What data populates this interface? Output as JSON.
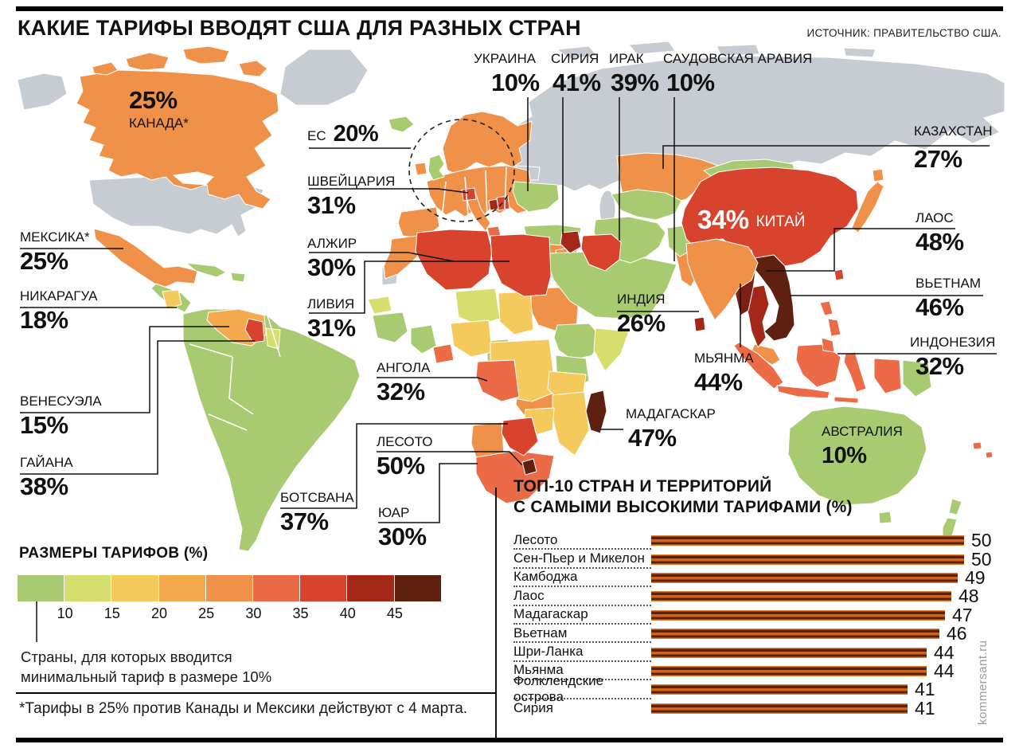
{
  "title": "КАКИЕ ТАРИФЫ ВВОДЯТ США ДЛЯ РАЗНЫХ СТРАН",
  "source": "ИСТОЧНИК: ПРАВИТЕЛЬСТВО США.",
  "watermark": "kommersant.ru",
  "map": {
    "callouts": [
      {
        "id": "canada",
        "name": "КАНАДА*",
        "value": "25%"
      },
      {
        "id": "mexico",
        "name": "МЕКСИКА*",
        "value": "25%"
      },
      {
        "id": "nicaragua",
        "name": "НИКАРАГУА",
        "value": "18%"
      },
      {
        "id": "venezuela",
        "name": "ВЕНЕСУЭЛА",
        "value": "15%"
      },
      {
        "id": "guyana",
        "name": "ГАЙАНА",
        "value": "38%"
      },
      {
        "id": "eu",
        "name": "ЕС",
        "value": "20%"
      },
      {
        "id": "switzerland",
        "name": "ШВЕЙЦАРИЯ",
        "value": "31%"
      },
      {
        "id": "algeria",
        "name": "АЛЖИР",
        "value": "30%"
      },
      {
        "id": "libya",
        "name": "ЛИВИЯ",
        "value": "31%"
      },
      {
        "id": "angola",
        "name": "АНГОЛА",
        "value": "32%"
      },
      {
        "id": "lesotho",
        "name": "ЛЕСОТО",
        "value": "50%"
      },
      {
        "id": "botswana",
        "name": "БОТСВАНА",
        "value": "37%"
      },
      {
        "id": "south-africa",
        "name": "ЮАР",
        "value": "30%"
      },
      {
        "id": "ukraine",
        "name": "УКРАИНА",
        "value": "10%"
      },
      {
        "id": "syria",
        "name": "СИРИЯ",
        "value": "41%"
      },
      {
        "id": "iraq",
        "name": "ИРАК",
        "value": "39%"
      },
      {
        "id": "saudi-arabia",
        "name": "САУДОВСКАЯ АРАВИЯ",
        "value": "10%"
      },
      {
        "id": "kazakhstan",
        "name": "КАЗАХСТАН",
        "value": "27%"
      },
      {
        "id": "china",
        "name": "КИТАЙ",
        "value": "34%"
      },
      {
        "id": "laos",
        "name": "ЛАОС",
        "value": "48%"
      },
      {
        "id": "vietnam",
        "name": "ВЬЕТНАМ",
        "value": "46%"
      },
      {
        "id": "indonesia",
        "name": "ИНДОНЕЗИЯ",
        "value": "32%"
      },
      {
        "id": "india",
        "name": "ИНДИЯ",
        "value": "26%"
      },
      {
        "id": "myanmar",
        "name": "МЬЯНМА",
        "value": "44%"
      },
      {
        "id": "madagascar",
        "name": "МАДАГАСКАР",
        "value": "47%"
      },
      {
        "id": "australia",
        "name": "АВСТРАЛИЯ",
        "value": "10%"
      }
    ]
  },
  "legend": {
    "heading": "РАЗМЕРЫ ТАРИФОВ (%)",
    "ticks": [
      "10",
      "15",
      "20",
      "25",
      "30",
      "35",
      "40",
      "45"
    ],
    "colors": [
      "#a8cb72",
      "#d6df6e",
      "#f5ca5c",
      "#f3a94c",
      "#f0914a",
      "#ec6b47",
      "#d8432e",
      "#a32818",
      "#5e2110"
    ],
    "note_line1": "Страны, для которых вводится",
    "note_line2": "минимальный тариф в размере 10%"
  },
  "footnote": "*Тарифы в 25% против Канады и Мексики действуют с 4 марта.",
  "chart_data": {
    "type": "bar",
    "orientation": "horizontal",
    "title_line1": "ТОП-10 СТРАН И ТЕРРИТОРИЙ",
    "title_line2": "С САМЫМИ ВЫСОКИМИ ТАРИФАМИ (%)",
    "categories": [
      "Лесото",
      "Сен-Пьер и Микелон",
      "Камбоджа",
      "Лаос",
      "Мадагаскар",
      "Вьетнам",
      "Шри-Ланка",
      "Мьянма",
      "Фолклендские острова",
      "Сирия"
    ],
    "values": [
      50,
      50,
      49,
      48,
      47,
      46,
      44,
      44,
      41,
      41
    ],
    "xlim": [
      0,
      50
    ],
    "bar_stripe_dark": "#5e2008",
    "bar_stripe_orange": "#cf641f"
  }
}
